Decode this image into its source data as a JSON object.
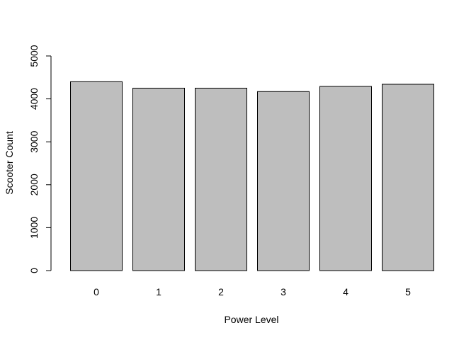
{
  "chart_data": {
    "type": "bar",
    "categories": [
      "0",
      "1",
      "2",
      "3",
      "4",
      "5"
    ],
    "values": [
      4400,
      4250,
      4250,
      4170,
      4290,
      4340
    ],
    "xlabel": "Power Level",
    "ylabel": "Scooter Count",
    "ylim": [
      0,
      5000
    ],
    "yticks": [
      "0",
      "1000",
      "2000",
      "3000",
      "4000",
      "5000"
    ],
    "bar_color": "#bebebe",
    "grid": false
  }
}
